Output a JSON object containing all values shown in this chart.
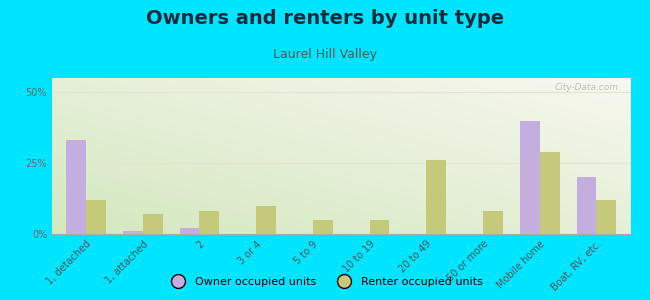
{
  "title": "Owners and renters by unit type",
  "subtitle": "Laurel Hill Valley",
  "categories": [
    "1, detached",
    "1, attached",
    "2",
    "3 or 4",
    "5 to 9",
    "10 to 19",
    "20 to 49",
    "50 or more",
    "Mobile home",
    "Boat, RV, etc."
  ],
  "owner_values": [
    33,
    1,
    2,
    0,
    0,
    0,
    0,
    0,
    40,
    20
  ],
  "renter_values": [
    12,
    7,
    8,
    10,
    5,
    5,
    26,
    8,
    29,
    12
  ],
  "owner_color": "#c4aee0",
  "renter_color": "#c5c97a",
  "background_color": "#00e5ff",
  "ylim": [
    0,
    55
  ],
  "yticks": [
    0,
    25,
    50
  ],
  "ytick_labels": [
    "0%",
    "25%",
    "50%"
  ],
  "bar_width": 0.35,
  "legend_owner": "Owner occupied units",
  "legend_renter": "Renter occupied units",
  "title_fontsize": 14,
  "subtitle_fontsize": 9,
  "tick_fontsize": 7,
  "watermark": "City-Data.com",
  "title_color": "#1a2a3a",
  "subtitle_color": "#555555",
  "grid_color": "#e8e0d0",
  "bottom_line_color": "#aaaaaa"
}
